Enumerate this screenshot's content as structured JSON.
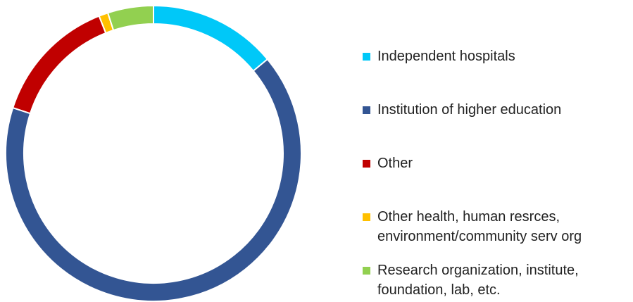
{
  "chart_data": {
    "type": "donut",
    "categories": [
      "Independent hospitals",
      "Institution of higher education",
      "Other",
      "Other health, human resrces, environment/community serv org",
      "Research organization, institute, foundation, lab, etc."
    ],
    "values": [
      14,
      66,
      14,
      1,
      5
    ],
    "colors": [
      "#00c8f8",
      "#335593",
      "#c00000",
      "#ffc000",
      "#92d050"
    ],
    "legend": "right"
  }
}
